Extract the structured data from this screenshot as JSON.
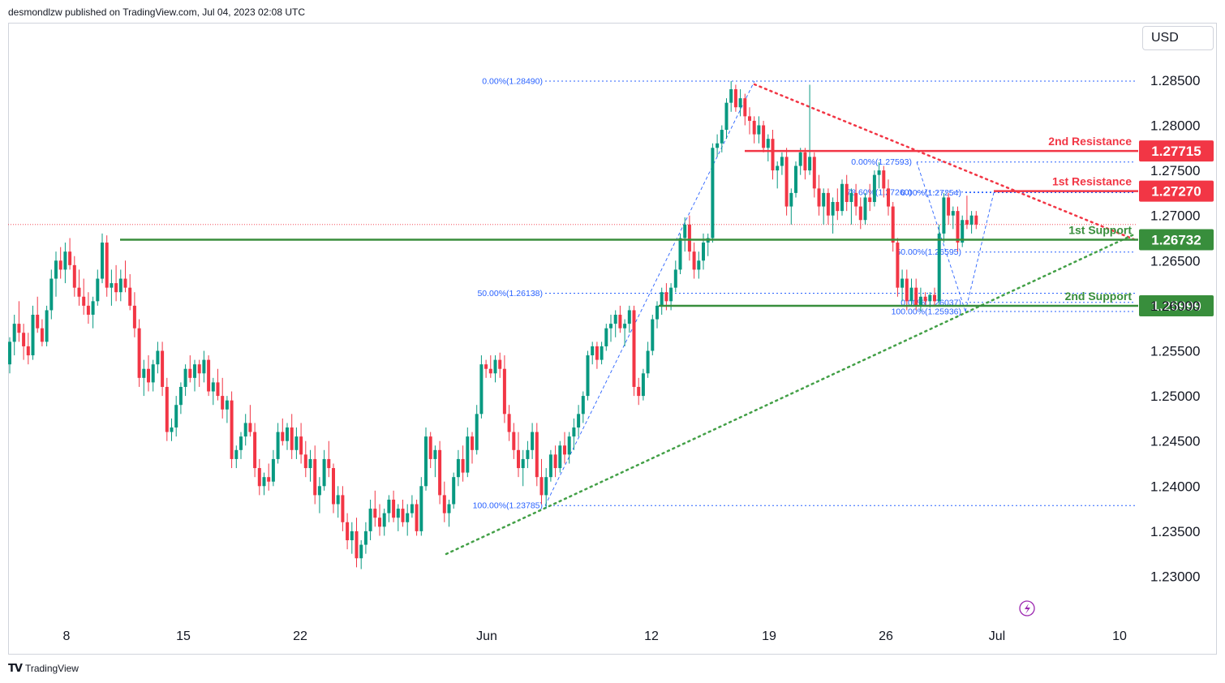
{
  "header": {
    "publisher": "desmondlzw published on TradingView.com, Jul 04, 2023 02:08 UTC"
  },
  "currency_button": {
    "label": "USD"
  },
  "footer": {
    "logo_icon": "tradingview-logo-icon",
    "brand": "TradingView"
  },
  "colors": {
    "up": "#089981",
    "down": "#f23645",
    "resistance": "#f23645",
    "support": "#388e3c",
    "fib": "#2962ff",
    "trend_up": "#43a047",
    "trend_down": "#f23645"
  },
  "chart_data": {
    "type": "candlestick",
    "title": "",
    "ylim": [
      1.228,
      1.2904
    ],
    "x_ticks": [
      "8",
      "15",
      "22",
      "Jun",
      "12",
      "19",
      "26",
      "Jul",
      "10"
    ],
    "y_ticks": [
      "1.28500",
      "1.28000",
      "1.27500",
      "1.27000",
      "1.26500",
      "1.26000",
      "1.25500",
      "1.25000",
      "1.24500",
      "1.24000",
      "1.23500",
      "1.23000"
    ],
    "y_values": [
      1.285,
      1.28,
      1.275,
      1.27,
      1.265,
      1.26,
      1.255,
      1.25,
      1.245,
      1.24,
      1.235,
      1.23
    ],
    "last_price": 1.269,
    "levels": [
      {
        "label": "2nd Resistance",
        "price_label": "1.27715",
        "price": 1.27715,
        "kind": "resistance"
      },
      {
        "label": "1st Resistance",
        "price_label": "1.27270",
        "price": 1.2727,
        "kind": "resistance"
      },
      {
        "label": "1st Support",
        "price_label": "1.26732",
        "price": 1.26732,
        "kind": "support"
      },
      {
        "label": "2nd Support",
        "price_label": "1.25999",
        "price": 1.25999,
        "kind": "support"
      }
    ],
    "fib_labels": [
      {
        "text": "0.00%(1.28490)",
        "price": 1.2849
      },
      {
        "text": "50.00%(1.26138)",
        "price": 1.26138
      },
      {
        "text": "100.00%(1.23785)",
        "price": 1.23785
      },
      {
        "text": "0.00%(1.27593)",
        "price": 1.27593
      },
      {
        "text": "78.60%(1.27260)",
        "price": 1.2726
      },
      {
        "text": "0.00%(1.27254)",
        "price": 1.27254
      },
      {
        "text": "50.00%(1.26595)",
        "price": 1.26595
      },
      {
        "text": "0.00%(1.26037)",
        "price": 1.26037
      },
      {
        "text": "100.00%(1.25936)",
        "price": 1.25936
      }
    ],
    "candles": [
      [
        1.2535,
        1.2565,
        1.2525,
        1.256
      ],
      [
        1.256,
        1.259,
        1.2545,
        1.258
      ],
      [
        1.258,
        1.2605,
        1.256,
        1.257
      ],
      [
        1.257,
        1.258,
        1.254,
        1.2555
      ],
      [
        1.2555,
        1.257,
        1.2535,
        1.2545
      ],
      [
        1.2545,
        1.26,
        1.254,
        1.259
      ],
      [
        1.259,
        1.261,
        1.257,
        1.2575
      ],
      [
        1.2575,
        1.2585,
        1.2555,
        1.256
      ],
      [
        1.256,
        1.26,
        1.2555,
        1.2595
      ],
      [
        1.2595,
        1.264,
        1.2585,
        1.263
      ],
      [
        1.263,
        1.266,
        1.261,
        1.265
      ],
      [
        1.265,
        1.2665,
        1.263,
        1.264
      ],
      [
        1.264,
        1.267,
        1.2625,
        1.266
      ],
      [
        1.266,
        1.2675,
        1.264,
        1.2645
      ],
      [
        1.2645,
        1.2655,
        1.261,
        1.262
      ],
      [
        1.262,
        1.264,
        1.26,
        1.261
      ],
      [
        1.261,
        1.263,
        1.259,
        1.26
      ],
      [
        1.26,
        1.2615,
        1.258,
        1.259
      ],
      [
        1.259,
        1.261,
        1.2575,
        1.2605
      ],
      [
        1.2605,
        1.264,
        1.26,
        1.263
      ],
      [
        1.263,
        1.268,
        1.2625,
        1.267
      ],
      [
        1.267,
        1.2678,
        1.261,
        1.262
      ],
      [
        1.262,
        1.264,
        1.26,
        1.2625
      ],
      [
        1.2625,
        1.2645,
        1.2605,
        1.2615
      ],
      [
        1.2615,
        1.264,
        1.2605,
        1.263
      ],
      [
        1.263,
        1.265,
        1.2615,
        1.262
      ],
      [
        1.262,
        1.2635,
        1.2595,
        1.26
      ],
      [
        1.26,
        1.2615,
        1.2565,
        1.2575
      ],
      [
        1.2575,
        1.2585,
        1.251,
        1.252
      ],
      [
        1.252,
        1.254,
        1.25,
        1.253
      ],
      [
        1.253,
        1.2545,
        1.2505,
        1.2515
      ],
      [
        1.2515,
        1.254,
        1.2505,
        1.2535
      ],
      [
        1.2535,
        1.256,
        1.2525,
        1.255
      ],
      [
        1.255,
        1.256,
        1.25,
        1.251
      ],
      [
        1.251,
        1.252,
        1.245,
        1.246
      ],
      [
        1.246,
        1.2475,
        1.245,
        1.2465
      ],
      [
        1.2465,
        1.25,
        1.2455,
        1.249
      ],
      [
        1.249,
        1.2515,
        1.248,
        1.251
      ],
      [
        1.251,
        1.2535,
        1.25,
        1.253
      ],
      [
        1.253,
        1.2545,
        1.2515,
        1.252
      ],
      [
        1.252,
        1.254,
        1.2505,
        1.2535
      ],
      [
        1.2535,
        1.254,
        1.251,
        1.2525
      ],
      [
        1.2525,
        1.255,
        1.2515,
        1.254
      ],
      [
        1.254,
        1.2545,
        1.25,
        1.2505
      ],
      [
        1.2505,
        1.252,
        1.249,
        1.2515
      ],
      [
        1.2515,
        1.253,
        1.2495,
        1.25
      ],
      [
        1.25,
        1.252,
        1.2475,
        1.2485
      ],
      [
        1.2485,
        1.25,
        1.247,
        1.2495
      ],
      [
        1.2495,
        1.2505,
        1.242,
        1.243
      ],
      [
        1.243,
        1.2445,
        1.242,
        1.244
      ],
      [
        1.244,
        1.246,
        1.243,
        1.2455
      ],
      [
        1.2455,
        1.248,
        1.2445,
        1.247
      ],
      [
        1.247,
        1.249,
        1.2455,
        1.246
      ],
      [
        1.246,
        1.247,
        1.241,
        1.242
      ],
      [
        1.242,
        1.243,
        1.239,
        1.24
      ],
      [
        1.24,
        1.2415,
        1.239,
        1.241
      ],
      [
        1.241,
        1.2425,
        1.2395,
        1.2405
      ],
      [
        1.2405,
        1.244,
        1.24,
        1.243
      ],
      [
        1.243,
        1.247,
        1.2425,
        1.246
      ],
      [
        1.246,
        1.2475,
        1.2445,
        1.245
      ],
      [
        1.245,
        1.247,
        1.244,
        1.2465
      ],
      [
        1.2465,
        1.248,
        1.243,
        1.244
      ],
      [
        1.244,
        1.2465,
        1.243,
        1.2455
      ],
      [
        1.2455,
        1.247,
        1.2425,
        1.2435
      ],
      [
        1.2435,
        1.245,
        1.241,
        1.242
      ],
      [
        1.242,
        1.244,
        1.2405,
        1.243
      ],
      [
        1.243,
        1.2445,
        1.238,
        1.239
      ],
      [
        1.239,
        1.241,
        1.237,
        1.24
      ],
      [
        1.24,
        1.244,
        1.2395,
        1.243
      ],
      [
        1.243,
        1.245,
        1.241,
        1.242
      ],
      [
        1.242,
        1.2425,
        1.237,
        1.238
      ],
      [
        1.238,
        1.24,
        1.2365,
        1.239
      ],
      [
        1.239,
        1.24,
        1.235,
        1.236
      ],
      [
        1.236,
        1.237,
        1.233,
        1.234
      ],
      [
        1.234,
        1.236,
        1.2325,
        1.235
      ],
      [
        1.235,
        1.2365,
        1.231,
        1.232
      ],
      [
        1.232,
        1.234,
        1.2308,
        1.2335
      ],
      [
        1.2335,
        1.236,
        1.2325,
        1.235
      ],
      [
        1.235,
        1.2385,
        1.234,
        1.2375
      ],
      [
        1.2375,
        1.2395,
        1.2355,
        1.2365
      ],
      [
        1.2365,
        1.238,
        1.2345,
        1.2355
      ],
      [
        1.2355,
        1.2375,
        1.2345,
        1.237
      ],
      [
        1.237,
        1.239,
        1.236,
        1.2385
      ],
      [
        1.2385,
        1.2395,
        1.236,
        1.2365
      ],
      [
        1.2365,
        1.238,
        1.235,
        1.2375
      ],
      [
        1.2375,
        1.2385,
        1.2355,
        1.236
      ],
      [
        1.236,
        1.238,
        1.2345,
        1.237
      ],
      [
        1.237,
        1.239,
        1.2365,
        1.238
      ],
      [
        1.238,
        1.2385,
        1.2345,
        1.235
      ],
      [
        1.235,
        1.241,
        1.2345,
        1.24
      ],
      [
        1.24,
        1.2465,
        1.2395,
        1.2455
      ],
      [
        1.2455,
        1.246,
        1.242,
        1.243
      ],
      [
        1.243,
        1.2445,
        1.241,
        1.244
      ],
      [
        1.244,
        1.245,
        1.238,
        1.239
      ],
      [
        1.239,
        1.2405,
        1.236,
        1.237
      ],
      [
        1.237,
        1.2385,
        1.2355,
        1.238
      ],
      [
        1.238,
        1.2415,
        1.2375,
        1.241
      ],
      [
        1.241,
        1.244,
        1.24,
        1.243
      ],
      [
        1.243,
        1.2445,
        1.2405,
        1.2415
      ],
      [
        1.2415,
        1.2465,
        1.241,
        1.2455
      ],
      [
        1.2455,
        1.246,
        1.2425,
        1.244
      ],
      [
        1.244,
        1.249,
        1.2435,
        1.248
      ],
      [
        1.248,
        1.2545,
        1.2475,
        1.2535
      ],
      [
        1.2535,
        1.254,
        1.252,
        1.253
      ],
      [
        1.253,
        1.2545,
        1.252,
        1.2525
      ],
      [
        1.2525,
        1.2545,
        1.2515,
        1.254
      ],
      [
        1.254,
        1.2548,
        1.252,
        1.253
      ],
      [
        1.253,
        1.2545,
        1.247,
        1.248
      ],
      [
        1.248,
        1.249,
        1.245,
        1.246
      ],
      [
        1.246,
        1.247,
        1.243,
        1.244
      ],
      [
        1.244,
        1.246,
        1.241,
        1.242
      ],
      [
        1.242,
        1.244,
        1.24,
        1.243
      ],
      [
        1.243,
        1.245,
        1.242,
        1.244
      ],
      [
        1.244,
        1.247,
        1.243,
        1.246
      ],
      [
        1.246,
        1.247,
        1.24,
        1.241
      ],
      [
        1.241,
        1.243,
        1.238,
        1.239
      ],
      [
        1.239,
        1.242,
        1.2375,
        1.241
      ],
      [
        1.241,
        1.244,
        1.2405,
        1.2435
      ],
      [
        1.2435,
        1.2445,
        1.241,
        1.242
      ],
      [
        1.242,
        1.245,
        1.2415,
        1.2445
      ],
      [
        1.2445,
        1.246,
        1.2425,
        1.2435
      ],
      [
        1.2435,
        1.246,
        1.2425,
        1.2455
      ],
      [
        1.2455,
        1.2475,
        1.244,
        1.2465
      ],
      [
        1.2465,
        1.249,
        1.2455,
        1.248
      ],
      [
        1.248,
        1.2505,
        1.247,
        1.25
      ],
      [
        1.25,
        1.255,
        1.2495,
        1.2545
      ],
      [
        1.2545,
        1.256,
        1.2535,
        1.2555
      ],
      [
        1.2555,
        1.256,
        1.253,
        1.254
      ],
      [
        1.254,
        1.256,
        1.2535,
        1.2555
      ],
      [
        1.2555,
        1.258,
        1.255,
        1.2575
      ],
      [
        1.2575,
        1.259,
        1.256,
        1.258
      ],
      [
        1.258,
        1.2595,
        1.2565,
        1.259
      ],
      [
        1.259,
        1.26,
        1.257,
        1.2575
      ],
      [
        1.2575,
        1.2585,
        1.2555,
        1.258
      ],
      [
        1.258,
        1.26,
        1.257,
        1.2595
      ],
      [
        1.2595,
        1.26,
        1.25,
        1.251
      ],
      [
        1.251,
        1.252,
        1.249,
        1.25
      ],
      [
        1.25,
        1.253,
        1.2495,
        1.2525
      ],
      [
        1.2525,
        1.256,
        1.252,
        1.255
      ],
      [
        1.255,
        1.259,
        1.2545,
        1.2585
      ],
      [
        1.2585,
        1.2605,
        1.2575,
        1.26
      ],
      [
        1.26,
        1.262,
        1.259,
        1.2615
      ],
      [
        1.2615,
        1.2625,
        1.2595,
        1.2605
      ],
      [
        1.2605,
        1.2625,
        1.2595,
        1.262
      ],
      [
        1.262,
        1.265,
        1.2615,
        1.264
      ],
      [
        1.264,
        1.268,
        1.2635,
        1.2675
      ],
      [
        1.2675,
        1.2698,
        1.266,
        1.269
      ],
      [
        1.269,
        1.27,
        1.265,
        1.266
      ],
      [
        1.266,
        1.267,
        1.263,
        1.264
      ],
      [
        1.264,
        1.266,
        1.263,
        1.265
      ],
      [
        1.265,
        1.268,
        1.264,
        1.267
      ],
      [
        1.267,
        1.268,
        1.2655,
        1.2675
      ],
      [
        1.2675,
        1.278,
        1.267,
        1.2775
      ],
      [
        1.2775,
        1.279,
        1.2765,
        1.278
      ],
      [
        1.278,
        1.28,
        1.277,
        1.2795
      ],
      [
        1.2795,
        1.283,
        1.2785,
        1.2825
      ],
      [
        1.2825,
        1.2849,
        1.2815,
        1.284
      ],
      [
        1.284,
        1.2845,
        1.2815,
        1.282
      ],
      [
        1.282,
        1.284,
        1.281,
        1.283
      ],
      [
        1.283,
        1.2835,
        1.28,
        1.281
      ],
      [
        1.281,
        1.282,
        1.279,
        1.2805
      ],
      [
        1.2805,
        1.281,
        1.278,
        1.279
      ],
      [
        1.279,
        1.281,
        1.278,
        1.28
      ],
      [
        1.28,
        1.2805,
        1.277,
        1.2775
      ],
      [
        1.2775,
        1.279,
        1.276,
        1.2785
      ],
      [
        1.2785,
        1.2795,
        1.274,
        1.275
      ],
      [
        1.275,
        1.276,
        1.273,
        1.2755
      ],
      [
        1.2755,
        1.277,
        1.2745,
        1.2765
      ],
      [
        1.2765,
        1.2775,
        1.27,
        1.271
      ],
      [
        1.271,
        1.273,
        1.269,
        1.2725
      ],
      [
        1.2725,
        1.276,
        1.272,
        1.2755
      ],
      [
        1.2755,
        1.2775,
        1.2745,
        1.277
      ],
      [
        1.277,
        1.2775,
        1.274,
        1.275
      ],
      [
        1.275,
        1.2845,
        1.2745,
        1.2765
      ],
      [
        1.2765,
        1.277,
        1.272,
        1.273
      ],
      [
        1.273,
        1.2745,
        1.27,
        1.271
      ],
      [
        1.271,
        1.273,
        1.269,
        1.2725
      ],
      [
        1.2725,
        1.273,
        1.269,
        1.27
      ],
      [
        1.27,
        1.272,
        1.268,
        1.2715
      ],
      [
        1.2715,
        1.273,
        1.2695,
        1.2705
      ],
      [
        1.2705,
        1.274,
        1.27,
        1.2735
      ],
      [
        1.2735,
        1.2745,
        1.2705,
        1.2715
      ],
      [
        1.2715,
        1.273,
        1.269,
        1.2725
      ],
      [
        1.2725,
        1.2735,
        1.27,
        1.271
      ],
      [
        1.271,
        1.272,
        1.2685,
        1.2695
      ],
      [
        1.2695,
        1.2725,
        1.269,
        1.272
      ],
      [
        1.272,
        1.2735,
        1.2705,
        1.2715
      ],
      [
        1.2715,
        1.275,
        1.271,
        1.2745
      ],
      [
        1.2745,
        1.2759,
        1.273,
        1.275
      ],
      [
        1.275,
        1.2755,
        1.272,
        1.273
      ],
      [
        1.273,
        1.274,
        1.27,
        1.271
      ],
      [
        1.271,
        1.2715,
        1.266,
        1.267
      ],
      [
        1.267,
        1.2675,
        1.261,
        1.262
      ],
      [
        1.262,
        1.264,
        1.2605,
        1.263
      ],
      [
        1.263,
        1.264,
        1.2595,
        1.2605
      ],
      [
        1.2605,
        1.263,
        1.26,
        1.262
      ],
      [
        1.262,
        1.263,
        1.2595,
        1.26
      ],
      [
        1.26,
        1.262,
        1.2594,
        1.261
      ],
      [
        1.261,
        1.2615,
        1.26,
        1.2605
      ],
      [
        1.2605,
        1.2615,
        1.2598,
        1.2612
      ],
      [
        1.2612,
        1.262,
        1.26,
        1.2605
      ],
      [
        1.2605,
        1.269,
        1.26,
        1.268
      ],
      [
        1.268,
        1.2725,
        1.267,
        1.272
      ],
      [
        1.272,
        1.2725,
        1.269,
        1.27
      ],
      [
        1.27,
        1.271,
        1.2685,
        1.2705
      ],
      [
        1.2705,
        1.271,
        1.266,
        1.267
      ],
      [
        1.267,
        1.27,
        1.2665,
        1.2695
      ],
      [
        1.2695,
        1.2722,
        1.2685,
        1.269
      ],
      [
        1.269,
        1.2705,
        1.268,
        1.27
      ],
      [
        1.27,
        1.2705,
        1.2685,
        1.269
      ]
    ]
  }
}
